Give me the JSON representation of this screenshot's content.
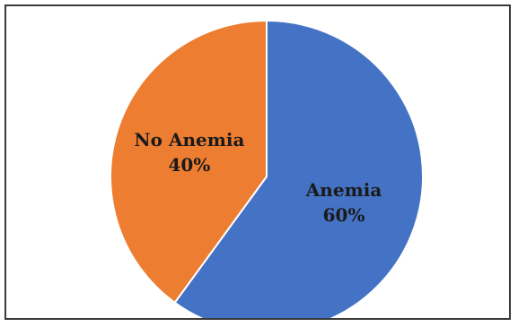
{
  "chart_data": {
    "type": "pie",
    "title": "",
    "slices": [
      {
        "label": "Anemia",
        "value": 60,
        "value_label": "60%",
        "color": "#4472C4"
      },
      {
        "label": "No Anemia",
        "value": 40,
        "value_label": "40%",
        "color": "#ED7D31"
      }
    ],
    "start_angle_deg": 0,
    "direction": "clockwise",
    "legend": "none"
  }
}
